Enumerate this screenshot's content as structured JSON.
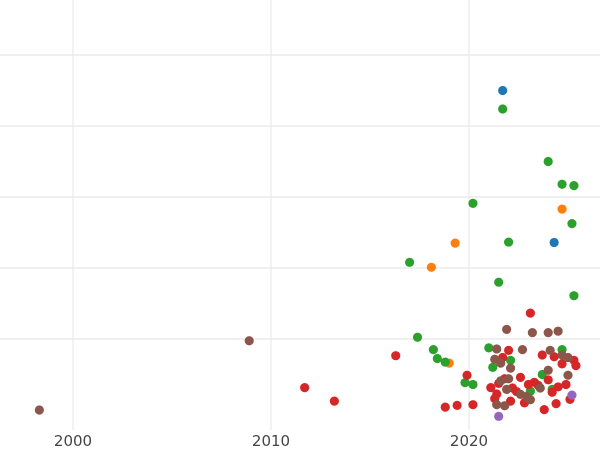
{
  "chart_data": {
    "type": "scatter",
    "title": "",
    "xlabel": "",
    "ylabel": "",
    "xlim": [
      1996.3,
      2026.6
    ],
    "ylim": [
      0.0,
      1.1
    ],
    "x_ticks": [
      2000,
      2010,
      2020
    ],
    "x_tick_labels": [
      "2000",
      "2010",
      "2020"
    ],
    "y_gridlines": [
      0.2,
      0.4,
      0.6,
      0.8,
      1.0
    ],
    "grid": "on",
    "legend": "none",
    "series": [
      {
        "color": "#1f77b4",
        "points": [
          {
            "x": 2021.7,
            "y": 0.9
          },
          {
            "x": 2024.3,
            "y": 0.472
          }
        ]
      },
      {
        "color": "#ff7f0e",
        "points": [
          {
            "x": 2018.1,
            "y": 0.402
          },
          {
            "x": 2019.3,
            "y": 0.47
          },
          {
            "x": 2024.7,
            "y": 0.566
          },
          {
            "x": 2019.0,
            "y": 0.132
          }
        ]
      },
      {
        "color": "#2ca02c",
        "points": [
          {
            "x": 2021.7,
            "y": 0.848
          },
          {
            "x": 2024.0,
            "y": 0.7
          },
          {
            "x": 2024.7,
            "y": 0.636
          },
          {
            "x": 2025.3,
            "y": 0.632
          },
          {
            "x": 2020.2,
            "y": 0.582
          },
          {
            "x": 2025.2,
            "y": 0.525
          },
          {
            "x": 2022.0,
            "y": 0.473
          },
          {
            "x": 2017.0,
            "y": 0.416
          },
          {
            "x": 2021.5,
            "y": 0.36
          },
          {
            "x": 2025.3,
            "y": 0.322
          },
          {
            "x": 2017.4,
            "y": 0.205
          },
          {
            "x": 2018.2,
            "y": 0.17
          },
          {
            "x": 2018.4,
            "y": 0.145
          },
          {
            "x": 2018.8,
            "y": 0.135
          },
          {
            "x": 2021.0,
            "y": 0.175
          },
          {
            "x": 2021.2,
            "y": 0.12
          },
          {
            "x": 2019.8,
            "y": 0.077
          },
          {
            "x": 2020.2,
            "y": 0.072
          },
          {
            "x": 2022.1,
            "y": 0.14
          },
          {
            "x": 2023.7,
            "y": 0.1
          },
          {
            "x": 2024.7,
            "y": 0.17
          },
          {
            "x": 2023.1,
            "y": 0.053
          },
          {
            "x": 2024.2,
            "y": 0.058
          }
        ]
      },
      {
        "color": "#d62728",
        "points": [
          {
            "x": 2016.3,
            "y": 0.153
          },
          {
            "x": 2011.7,
            "y": 0.063
          },
          {
            "x": 2013.2,
            "y": 0.025
          },
          {
            "x": 2019.9,
            "y": 0.098
          },
          {
            "x": 2019.4,
            "y": 0.013
          },
          {
            "x": 2018.8,
            "y": 0.008
          },
          {
            "x": 2020.2,
            "y": 0.015
          },
          {
            "x": 2021.1,
            "y": 0.063
          },
          {
            "x": 2021.3,
            "y": 0.032
          },
          {
            "x": 2021.5,
            "y": 0.075
          },
          {
            "x": 2021.7,
            "y": 0.148
          },
          {
            "x": 2021.8,
            "y": 0.088
          },
          {
            "x": 2022.0,
            "y": 0.168
          },
          {
            "x": 2022.1,
            "y": 0.025
          },
          {
            "x": 2022.2,
            "y": 0.062
          },
          {
            "x": 2022.4,
            "y": 0.052
          },
          {
            "x": 2022.6,
            "y": 0.092
          },
          {
            "x": 2022.8,
            "y": 0.02
          },
          {
            "x": 2023.0,
            "y": 0.072
          },
          {
            "x": 2023.1,
            "y": 0.273
          },
          {
            "x": 2023.3,
            "y": 0.078
          },
          {
            "x": 2023.5,
            "y": 0.069
          },
          {
            "x": 2023.7,
            "y": 0.155
          },
          {
            "x": 2023.8,
            "y": 0.001
          },
          {
            "x": 2024.0,
            "y": 0.085
          },
          {
            "x": 2024.2,
            "y": 0.05
          },
          {
            "x": 2024.3,
            "y": 0.15
          },
          {
            "x": 2024.5,
            "y": 0.065
          },
          {
            "x": 2024.7,
            "y": 0.13
          },
          {
            "x": 2024.9,
            "y": 0.072
          },
          {
            "x": 2025.1,
            "y": 0.03
          },
          {
            "x": 2025.3,
            "y": 0.14
          },
          {
            "x": 2025.4,
            "y": 0.125
          },
          {
            "x": 2021.4,
            "y": 0.045
          },
          {
            "x": 2024.4,
            "y": 0.018
          }
        ]
      },
      {
        "color": "#8c564b",
        "points": [
          {
            "x": 1998.3,
            "y": 0.0
          },
          {
            "x": 2008.9,
            "y": 0.195
          },
          {
            "x": 2021.4,
            "y": 0.172
          },
          {
            "x": 2021.6,
            "y": 0.132
          },
          {
            "x": 2021.9,
            "y": 0.227
          },
          {
            "x": 2022.7,
            "y": 0.17
          },
          {
            "x": 2023.2,
            "y": 0.218
          },
          {
            "x": 2024.0,
            "y": 0.218
          },
          {
            "x": 2024.5,
            "y": 0.222
          },
          {
            "x": 2024.1,
            "y": 0.168
          },
          {
            "x": 2024.7,
            "y": 0.155
          },
          {
            "x": 2025.0,
            "y": 0.148
          },
          {
            "x": 2024.0,
            "y": 0.112
          },
          {
            "x": 2025.0,
            "y": 0.098
          },
          {
            "x": 2021.3,
            "y": 0.143
          },
          {
            "x": 2021.6,
            "y": 0.082
          },
          {
            "x": 2021.9,
            "y": 0.058
          },
          {
            "x": 2022.0,
            "y": 0.088
          },
          {
            "x": 2022.1,
            "y": 0.118
          },
          {
            "x": 2022.9,
            "y": 0.038
          },
          {
            "x": 2023.1,
            "y": 0.029
          },
          {
            "x": 2023.6,
            "y": 0.062
          },
          {
            "x": 2021.4,
            "y": 0.015
          },
          {
            "x": 2021.8,
            "y": 0.012
          },
          {
            "x": 2022.6,
            "y": 0.044
          }
        ]
      },
      {
        "color": "#9467bd",
        "points": [
          {
            "x": 2021.5,
            "y": -0.018
          },
          {
            "x": 2025.2,
            "y": 0.042
          }
        ]
      }
    ]
  }
}
